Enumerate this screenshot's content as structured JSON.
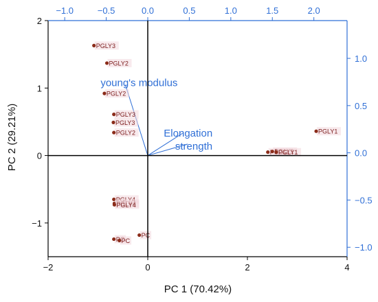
{
  "chart_data": {
    "type": "biplot",
    "xlabel": "PC 1 (70.42%)",
    "ylabel": "PC 2 (29.21%)",
    "xlim": [
      -2,
      4
    ],
    "ylim": [
      -1.5,
      2
    ],
    "xticks": [
      -2,
      0,
      2,
      4
    ],
    "yticks": [
      -1,
      0,
      1,
      2
    ],
    "top_axis": {
      "lim": [
        -1.2,
        2.4
      ],
      "ticks": [
        -1.0,
        -0.5,
        0.0,
        0.5,
        1.0,
        1.5,
        2.0
      ],
      "color": "#2f6fd6"
    },
    "right_axis": {
      "lim": [
        -1.1,
        1.4
      ],
      "ticks": [
        -1.0,
        -0.5,
        0.0,
        0.5,
        1.0
      ],
      "color": "#2f6fd6"
    },
    "scores": [
      {
        "label": "PGLY3",
        "x": -1.08,
        "y": 1.63
      },
      {
        "label": "PGLY2",
        "x": -0.82,
        "y": 1.37
      },
      {
        "label": "PGLY2",
        "x": -0.87,
        "y": 0.92
      },
      {
        "label": "PGLY3",
        "x": -0.68,
        "y": 0.61
      },
      {
        "label": "PGLY3",
        "x": -0.69,
        "y": 0.49
      },
      {
        "label": "PGLY2",
        "x": -0.68,
        "y": 0.34
      },
      {
        "label": "PGLY1",
        "x": 3.38,
        "y": 0.36
      },
      {
        "label": "PGLY1",
        "x": 2.41,
        "y": 0.05
      },
      {
        "label": "PGLY1",
        "x": 2.5,
        "y": 0.06
      },
      {
        "label": "PGLY1",
        "x": 2.58,
        "y": 0.05
      },
      {
        "label": "PGLY4",
        "x": -0.68,
        "y": -0.65
      },
      {
        "label": "PGLY4",
        "x": -0.67,
        "y": -0.71
      },
      {
        "label": "PGLY4",
        "x": -0.67,
        "y": -0.73
      },
      {
        "label": "PC",
        "x": -0.68,
        "y": -1.24
      },
      {
        "label": "PC",
        "x": -0.57,
        "y": -1.26
      },
      {
        "label": "PC",
        "x": -0.17,
        "y": -1.18
      }
    ],
    "loadings": [
      {
        "label": "young's modulus",
        "x": -0.45,
        "y": 1.05
      },
      {
        "label": "Elongation",
        "x": 0.7,
        "y": 0.33
      },
      {
        "label": "strength",
        "x": 0.8,
        "y": 0.17
      }
    ],
    "score_color": "#8b2c1a",
    "loading_color": "#2f6fd6"
  }
}
